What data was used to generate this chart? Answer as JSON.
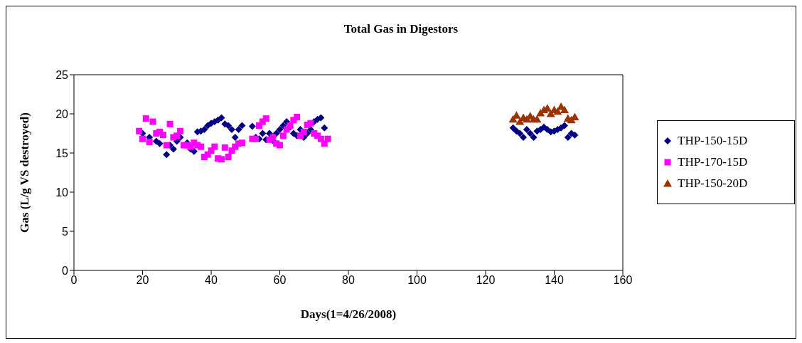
{
  "chart_data": {
    "type": "scatter",
    "title": "Total Gas in Digestors",
    "xlabel": "Days(1=4/26/2008)",
    "ylabel": "Gas (L/g VS destroyed)",
    "xlim": [
      0,
      160
    ],
    "xticks": [
      0,
      20,
      40,
      60,
      80,
      100,
      120,
      140,
      160
    ],
    "ylim": [
      0,
      25
    ],
    "yticks": [
      0,
      5,
      10,
      15,
      20,
      25
    ],
    "grid": false,
    "legend": "right",
    "series": [
      {
        "name": "THP-150-15D",
        "color": "#000080",
        "marker": "diamond",
        "x": [
          20,
          22,
          24,
          25,
          27,
          28,
          29,
          30,
          31,
          33,
          34,
          35,
          36,
          37,
          38,
          39,
          40,
          41,
          42,
          43,
          44,
          45,
          46,
          47,
          48,
          49,
          52,
          53,
          54,
          55,
          56,
          57,
          58,
          59,
          60,
          61,
          62,
          63,
          64,
          65,
          66,
          67,
          68,
          69,
          70,
          71,
          72,
          73,
          128,
          129,
          130,
          131,
          132,
          133,
          134,
          135,
          136,
          137,
          138,
          139,
          140,
          141,
          142,
          143,
          144,
          145,
          146
        ],
        "values": [
          17.5,
          17,
          16.5,
          16.2,
          14.8,
          16,
          15.5,
          16.5,
          17,
          16.3,
          15.5,
          15.2,
          17.7,
          17.8,
          18,
          18.5,
          18.8,
          19,
          19.2,
          19.5,
          18.7,
          18.5,
          18,
          17,
          18,
          18.5,
          18.4,
          17,
          16.8,
          17.5,
          16.7,
          17.5,
          16.6,
          17.5,
          18,
          18.5,
          19,
          18.3,
          17.5,
          17.2,
          18,
          17,
          17.5,
          18,
          19,
          19.3,
          19.5,
          18.2,
          18.2,
          17.8,
          17.5,
          17,
          18,
          17.5,
          17,
          17.8,
          18,
          18.3,
          18,
          17.7,
          17.8,
          18,
          18.2,
          18.5,
          17,
          17.5,
          17.3
        ]
      },
      {
        "name": "THP-170-15D",
        "color": "#ff00ff",
        "marker": "square",
        "x": [
          19,
          20,
          21,
          22,
          23,
          24,
          25,
          26,
          27,
          28,
          29,
          30,
          31,
          32,
          33,
          34,
          35,
          36,
          37,
          38,
          39,
          40,
          41,
          42,
          43,
          44,
          45,
          46,
          47,
          48,
          49,
          52,
          53,
          54,
          55,
          56,
          57,
          58,
          59,
          60,
          61,
          62,
          63,
          64,
          65,
          66,
          67,
          68,
          69,
          70,
          71,
          72,
          73,
          74
        ],
        "values": [
          17.8,
          16.8,
          19.4,
          16.4,
          19,
          17.5,
          17.7,
          17.3,
          16,
          18.7,
          17,
          17.2,
          17.8,
          16,
          16,
          15.8,
          16.3,
          16,
          15.8,
          14.5,
          14.8,
          15.3,
          15.8,
          14.3,
          14.2,
          15.7,
          14.5,
          15.3,
          15.8,
          16.2,
          16.3,
          16.8,
          16.8,
          18.5,
          19,
          19.4,
          16.7,
          17,
          16.2,
          16,
          17.2,
          18,
          18.5,
          19.2,
          19.6,
          17.2,
          17.7,
          18.6,
          18.8,
          17.5,
          17.2,
          16.8,
          16.2,
          16.8
        ]
      },
      {
        "name": "THP-150-20D",
        "color": "#993300",
        "marker": "triangle",
        "x": [
          128,
          129,
          130,
          131,
          132,
          133,
          134,
          135,
          136,
          137,
          138,
          139,
          140,
          141,
          142,
          143,
          144,
          145,
          146
        ],
        "values": [
          19.3,
          19.8,
          19,
          19.5,
          19.3,
          19.7,
          19.3,
          19.3,
          20.1,
          20.5,
          20.7,
          20,
          20.5,
          20.3,
          20.9,
          20.5,
          19.4,
          19.2,
          19.6
        ]
      }
    ]
  }
}
